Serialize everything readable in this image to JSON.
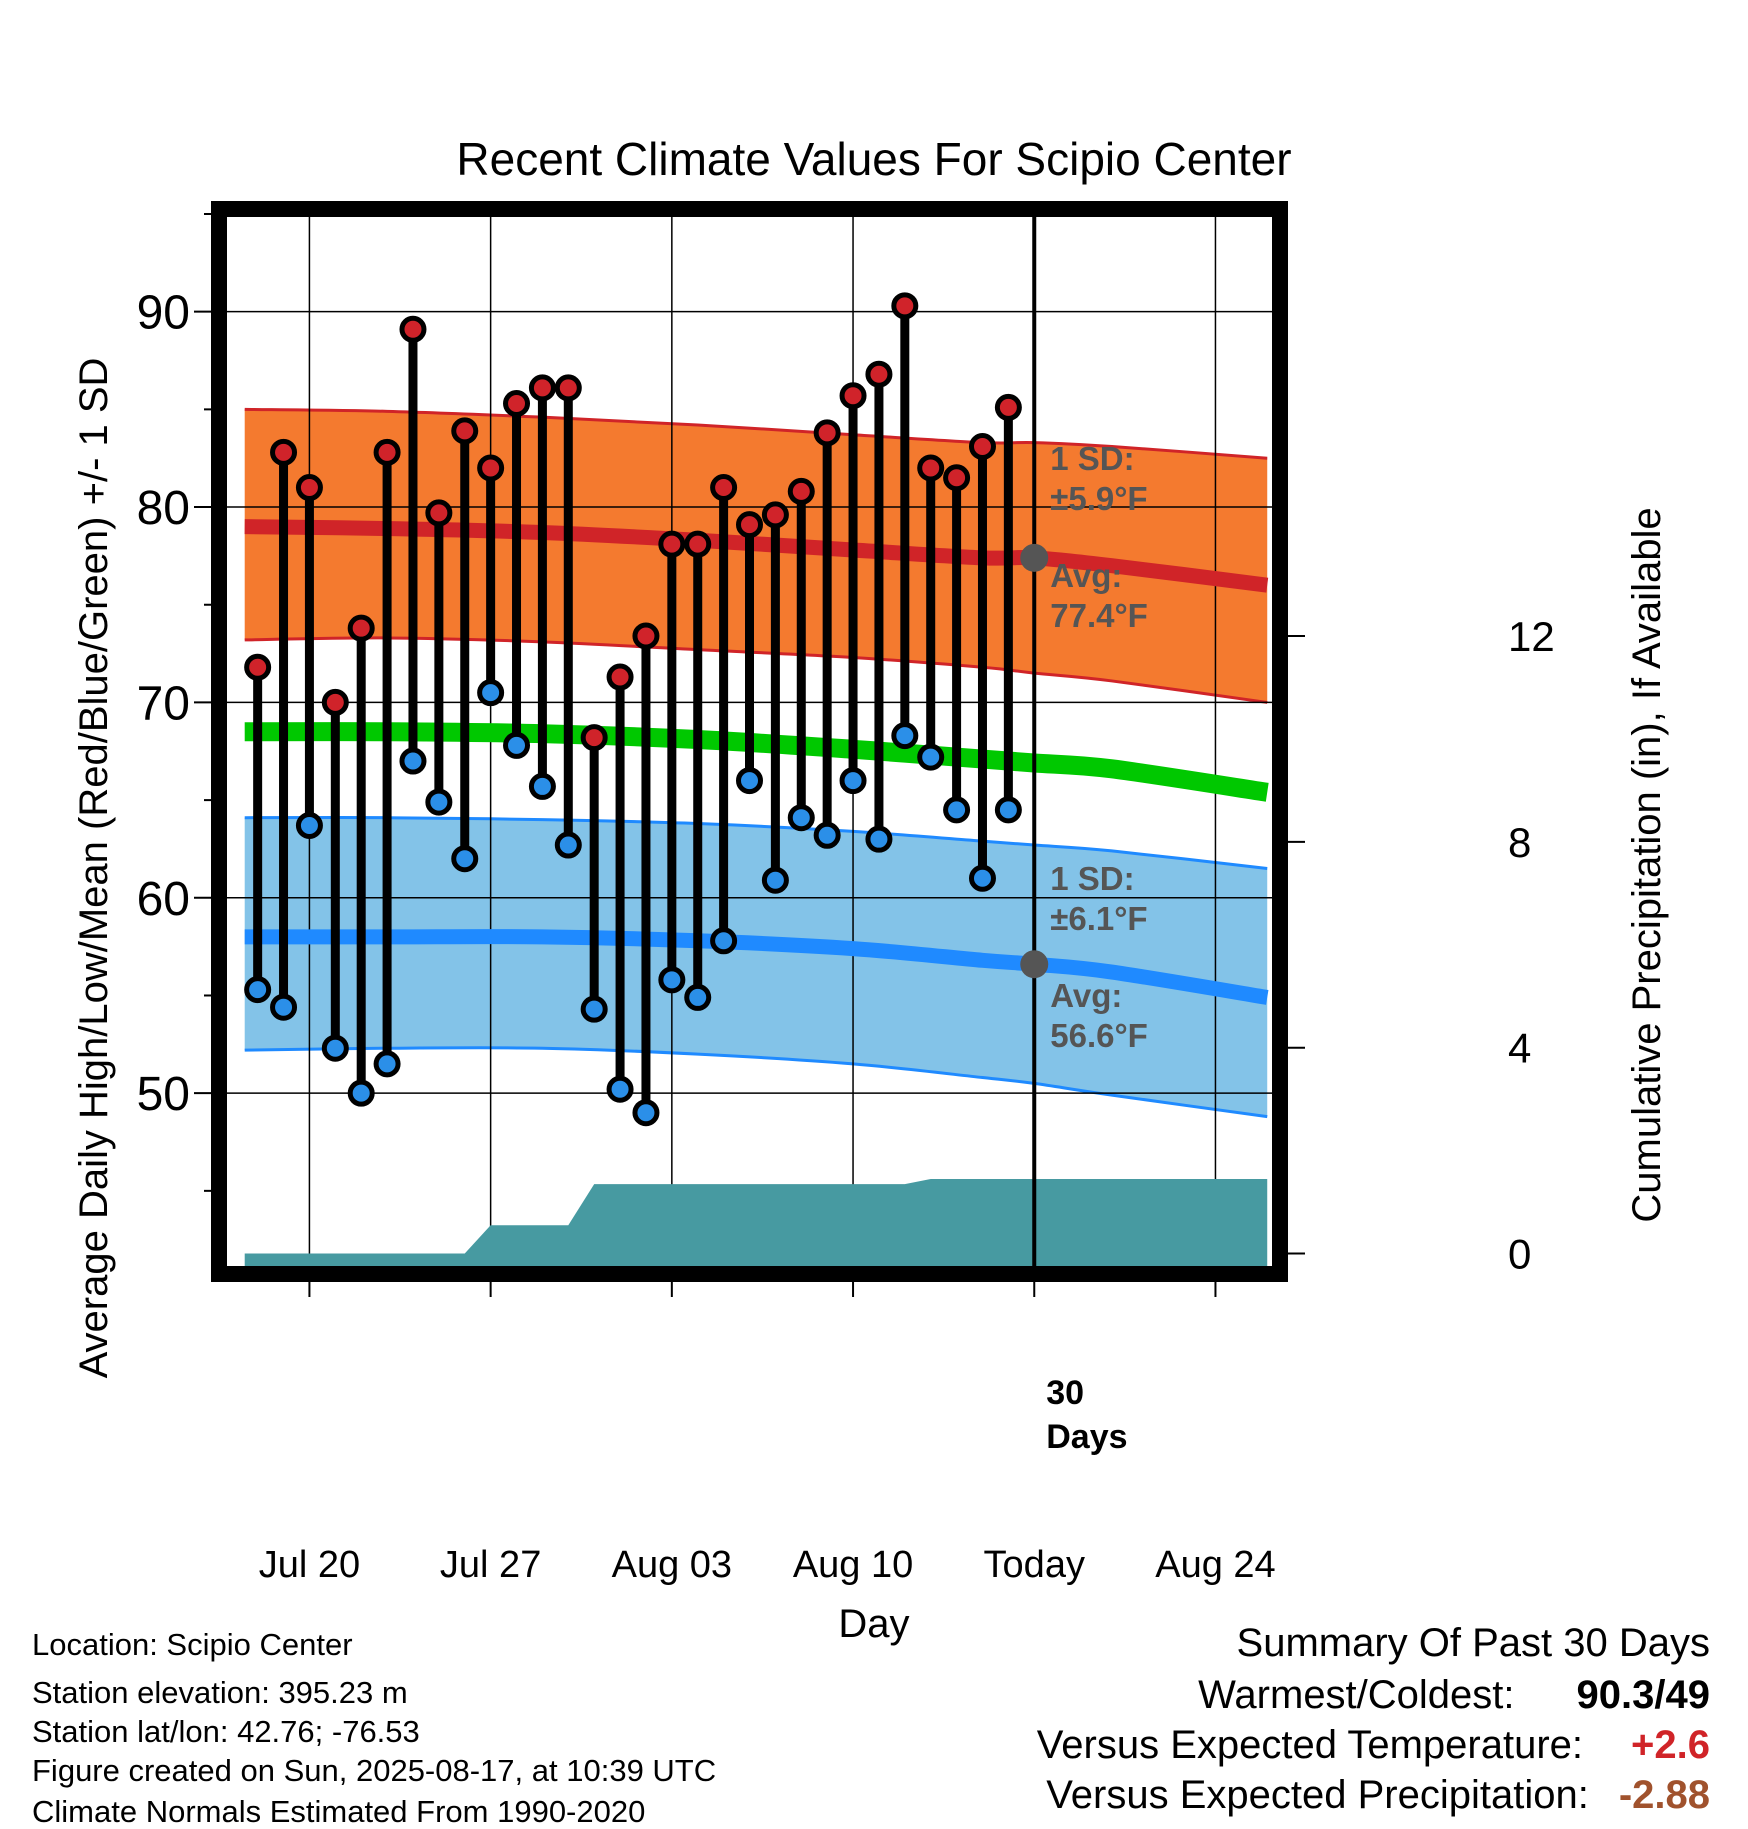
{
  "chart_data": {
    "type": "line",
    "title": "Recent Climate Values For Scipio Center",
    "xlabel": "Day",
    "ylabel": "Average Daily High/Low/Mean (Red/Blue/Green) +/- 1 SD",
    "y2label": "Cumulative Precipitation (in), If Available",
    "ylim": [
      41,
      95
    ],
    "y2lim": [
      -0.3,
      20.2
    ],
    "xlim": [
      -3.3,
      37.3
    ],
    "x_ticks": [
      {
        "x": 0,
        "label": "Jul 20"
      },
      {
        "x": 7,
        "label": "Jul 27"
      },
      {
        "x": 14,
        "label": "Aug 03"
      },
      {
        "x": 21,
        "label": "Aug 10"
      },
      {
        "x": 28,
        "label": "Today"
      },
      {
        "x": 35,
        "label": "Aug 24"
      }
    ],
    "y_ticks": [
      50,
      60,
      70,
      80,
      90
    ],
    "y2_ticks": [
      0,
      4,
      8,
      12
    ],
    "grid": true,
    "today_x": 28,
    "days_in_window": 30,
    "days_label": "30\nDays",
    "x_start": "Jul 18",
    "daily": {
      "x": [
        -2,
        -1,
        0,
        1,
        2,
        3,
        4,
        5,
        6,
        7,
        8,
        9,
        10,
        11,
        12,
        13,
        14,
        15,
        16,
        17,
        18,
        19,
        20,
        21,
        22,
        23,
        24,
        25,
        26,
        27
      ],
      "high": [
        71.8,
        82.8,
        81.0,
        70.0,
        73.8,
        82.8,
        89.1,
        79.7,
        83.9,
        82.0,
        85.3,
        86.1,
        86.1,
        68.2,
        71.3,
        73.4,
        78.1,
        78.1,
        81.0,
        79.1,
        79.6,
        80.8,
        83.8,
        85.7,
        86.8,
        90.3,
        82.0,
        81.5,
        83.1,
        85.1
      ],
      "low": [
        55.3,
        54.4,
        63.7,
        52.3,
        50.0,
        51.5,
        67.0,
        64.9,
        62.0,
        70.5,
        67.8,
        65.7,
        62.7,
        54.3,
        50.2,
        49.0,
        55.8,
        54.9,
        57.8,
        66.0,
        60.9,
        64.1,
        63.2,
        66.0,
        63.0,
        68.3,
        67.2,
        64.5,
        61.0,
        64.5
      ]
    },
    "normals": {
      "x": [
        -2.5,
        3,
        9,
        15,
        21,
        26,
        28,
        31,
        37
      ],
      "high_mean": [
        79.0,
        78.9,
        78.7,
        78.3,
        77.8,
        77.4,
        77.4,
        77.0,
        76.0
      ],
      "high_upper": [
        85.0,
        84.9,
        84.6,
        84.2,
        83.7,
        83.3,
        83.3,
        83.1,
        82.5
      ],
      "high_lower": [
        73.2,
        73.3,
        73.1,
        72.7,
        72.3,
        71.8,
        71.5,
        71.1,
        70.0
      ],
      "mean": [
        68.5,
        68.5,
        68.4,
        68.1,
        67.6,
        67.1,
        66.9,
        66.6,
        65.4
      ],
      "low_mean": [
        58.0,
        58.0,
        58.0,
        57.8,
        57.4,
        56.8,
        56.6,
        56.2,
        54.9
      ],
      "low_upper": [
        64.1,
        64.1,
        64.0,
        63.8,
        63.4,
        62.9,
        62.7,
        62.4,
        61.5
      ],
      "low_lower": [
        52.2,
        52.3,
        52.3,
        52.0,
        51.5,
        50.8,
        50.5,
        49.9,
        48.8
      ]
    },
    "precip": {
      "x": [
        -2.5,
        6,
        7,
        10,
        11,
        23,
        24,
        37
      ],
      "cumulative": [
        0,
        0,
        0.55,
        0.55,
        1.35,
        1.35,
        1.45,
        1.45
      ]
    },
    "annotations": {
      "high_sd": "1 SD:\n±5.9°F",
      "high_avg": "Avg:\n77.4°F",
      "low_sd": "1 SD:\n±6.1°F",
      "low_avg": "Avg:\n56.6°F"
    },
    "colors": {
      "high_band": "#f47a2f",
      "high_line": "#d02428",
      "mean_line": "#00c800",
      "low_band": "#83c3e8",
      "low_line": "#1f8aff",
      "precip": "#479aa1",
      "annotation_text": "#555555",
      "dot_high": "#d0232a",
      "dot_low": "#2b8fe8"
    }
  },
  "footer": {
    "location": "Location: Scipio Center",
    "elevation": "Station elevation: 395.23 m",
    "latlon": "Station lat/lon: 42.76; -76.53",
    "created": "Figure created on Sun, 2025-08-17, at 10:39 UTC",
    "normals": "Climate Normals Estimated From 1990-2020"
  },
  "summary": {
    "title": "Summary Of Past 30 Days",
    "warm_cold_label": "Warmest/Coldest:",
    "warm_cold_value": "90.3/49",
    "temp_label": "Versus Expected Temperature:",
    "temp_value": "+2.6",
    "temp_color": "#d02428",
    "precip_label": "Versus Expected Precipitation:",
    "precip_value": "-2.88",
    "precip_color": "#a0522d"
  }
}
